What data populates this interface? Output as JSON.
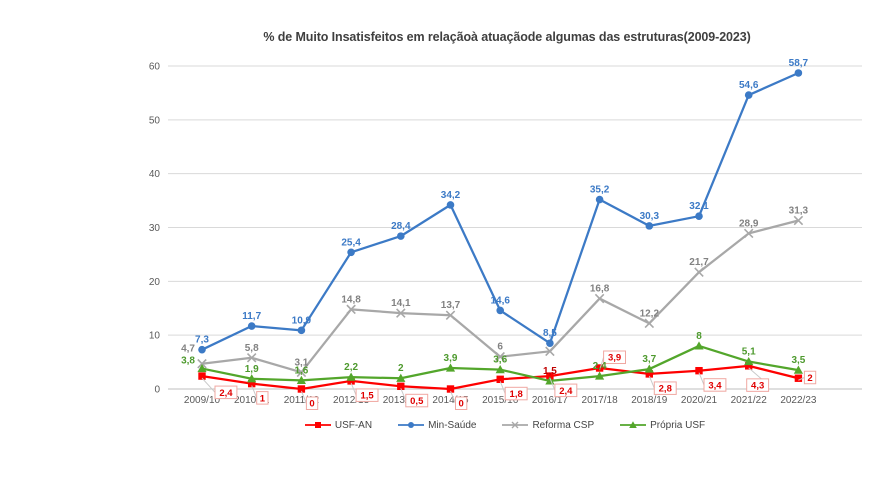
{
  "title": "% de Muito Insatisfeitos em relaçãoà atuaçãode algumas das estruturas(2009-2023)",
  "colors": {
    "grid": "#d9d9d9",
    "axis_line": "#bfbfbf",
    "tick_text": "#595959",
    "title_text": "#3f3f3f",
    "label_box_border": "#f0a8a2",
    "label_box_bg": "#ffffff",
    "leader_line": "#c9c9c9"
  },
  "chart_data": {
    "type": "line",
    "title": "% de Muito Insatisfeitos em relaçãoà atuaçãode algumas das estruturas(2009-2023)",
    "categories": [
      "2009/10",
      "2010/11",
      "2011/12",
      "2012/13",
      "2013/14",
      "2014/15",
      "2015/16",
      "2016/17",
      "2017/18",
      "2018/19",
      "2020/21",
      "2021/22",
      "2022/23"
    ],
    "ylim": [
      0,
      60
    ],
    "yticks": [
      0,
      10,
      20,
      30,
      40,
      50,
      60
    ],
    "grid": true,
    "legend_position": "bottom",
    "series": [
      {
        "name": "USF-AN",
        "marker": "square",
        "color": "#fe0000",
        "label_style": "boxed",
        "label_color": "#e00000",
        "values": [
          2.4,
          1,
          0,
          1.5,
          0.5,
          0,
          1.8,
          2.4,
          3.9,
          2.8,
          3.4,
          4.3,
          2
        ],
        "labels": [
          "2,4",
          "1",
          "0",
          "1,5",
          "0,5",
          "0",
          "1,8",
          "2,4",
          "3,9",
          "2,8",
          "3,4",
          "4,3",
          "2"
        ]
      },
      {
        "name": "Min-Saúde",
        "marker": "circle",
        "color": "#3c7ac6",
        "label_style": "plain",
        "label_color": "#3c7ac6",
        "values": [
          7.3,
          11.7,
          10.9,
          25.4,
          28.4,
          34.2,
          14.6,
          8.5,
          35.2,
          30.3,
          32.1,
          54.6,
          58.7
        ],
        "labels": [
          "7,3",
          "11,7",
          "10,9",
          "25,4",
          "28,4",
          "34,2",
          "14,6",
          "8,5",
          "35,2",
          "30,3",
          "32,1",
          "54,6",
          "58,7"
        ]
      },
      {
        "name": "Reforma CSP",
        "marker": "x",
        "color": "#a8a8a8",
        "label_style": "plain",
        "label_color": "#828282",
        "values": [
          4.7,
          5.8,
          3.1,
          14.8,
          14.1,
          13.7,
          6,
          7,
          16.8,
          12.2,
          21.7,
          28.9,
          31.3
        ],
        "labels": [
          "4,7",
          "5,8",
          "3,1",
          "14,8",
          "14,1",
          "13,7",
          "6",
          "",
          "16,8",
          "12,2",
          "21,7",
          "28,9",
          "31,3"
        ]
      },
      {
        "name": "Própria USF",
        "marker": "triangle",
        "color": "#53a62b",
        "label_style": "plain",
        "label_color": "#4e9a2e",
        "values": [
          3.8,
          1.9,
          1.6,
          2.2,
          2,
          3.9,
          3.6,
          1.5,
          2.4,
          3.7,
          8,
          5.1,
          3.5
        ],
        "labels": [
          "3,8",
          "1,9",
          "1,6",
          "2,2",
          "2",
          "3,9",
          "3,6",
          "1,5",
          "2,4",
          "3,7",
          "8",
          "5,1",
          "3,5"
        ],
        "label_color_overrides": {
          "7": "#c00000"
        }
      }
    ]
  }
}
